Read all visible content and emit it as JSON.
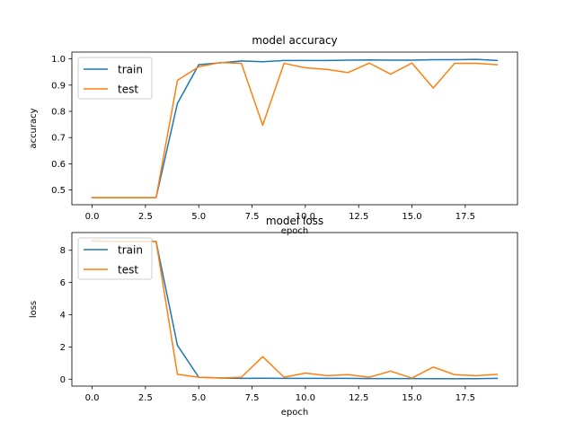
{
  "chart_data": [
    {
      "type": "line",
      "title": "model accuracy",
      "xlabel": "epoch",
      "ylabel": "accuracy",
      "xlim": [
        -0.95,
        19.95
      ],
      "ylim": [
        0.444,
        1.026
      ],
      "xticks": [
        0,
        2.5,
        5,
        7.5,
        10,
        12.5,
        15,
        17.5
      ],
      "xtick_labels": [
        "0.0",
        "2.5",
        "5.0",
        "7.5",
        "10.0",
        "12.5",
        "15.0",
        "17.5"
      ],
      "yticks": [
        0.5,
        0.6,
        0.7,
        0.8,
        0.9,
        1.0
      ],
      "ytick_labels": [
        "0.5",
        "0.6",
        "0.7",
        "0.8",
        "0.9",
        "1.0"
      ],
      "legend": "upper left",
      "grid": false,
      "x": [
        0,
        1,
        2,
        3,
        4,
        5,
        6,
        7,
        8,
        9,
        10,
        11,
        12,
        13,
        14,
        15,
        16,
        17,
        18,
        19
      ],
      "series": [
        {
          "name": "train",
          "color": "#1f77b4",
          "values": [
            0.471,
            0.471,
            0.471,
            0.471,
            0.83,
            0.978,
            0.985,
            0.992,
            0.989,
            0.994,
            0.994,
            0.994,
            0.995,
            0.996,
            0.995,
            0.995,
            0.997,
            0.997,
            0.998,
            0.994
          ]
        },
        {
          "name": "test",
          "color": "#ff7f0e",
          "values": [
            0.471,
            0.471,
            0.471,
            0.471,
            0.918,
            0.97,
            0.986,
            0.983,
            0.747,
            0.983,
            0.966,
            0.96,
            0.948,
            0.984,
            0.942,
            0.984,
            0.889,
            0.983,
            0.983,
            0.978
          ]
        }
      ]
    },
    {
      "type": "line",
      "title": "model loss",
      "xlabel": "epoch",
      "ylabel": "loss",
      "xlim": [
        -0.95,
        19.95
      ],
      "ylim": [
        -0.43,
        9.1
      ],
      "xticks": [
        0,
        2.5,
        5,
        7.5,
        10,
        12.5,
        15,
        17.5
      ],
      "xtick_labels": [
        "0.0",
        "2.5",
        "5.0",
        "7.5",
        "10.0",
        "12.5",
        "15.0",
        "17.5"
      ],
      "yticks": [
        0,
        2,
        4,
        6,
        8
      ],
      "ytick_labels": [
        "0",
        "2",
        "4",
        "6",
        "8"
      ],
      "legend": "upper left",
      "grid": false,
      "x": [
        0,
        1,
        2,
        3,
        4,
        5,
        6,
        7,
        8,
        9,
        10,
        11,
        12,
        13,
        14,
        15,
        16,
        17,
        18,
        19
      ],
      "series": [
        {
          "name": "train",
          "color": "#1f77b4",
          "values": [
            8.6,
            8.55,
            8.55,
            8.55,
            2.1,
            0.12,
            0.07,
            0.05,
            0.06,
            0.05,
            0.05,
            0.05,
            0.05,
            0.04,
            0.04,
            0.04,
            0.03,
            0.03,
            0.03,
            0.05
          ]
        },
        {
          "name": "test",
          "color": "#ff7f0e",
          "values": [
            8.55,
            8.55,
            8.55,
            8.55,
            0.3,
            0.12,
            0.08,
            0.12,
            1.4,
            0.12,
            0.38,
            0.22,
            0.28,
            0.12,
            0.5,
            0.07,
            0.75,
            0.28,
            0.22,
            0.3
          ]
        }
      ]
    }
  ]
}
